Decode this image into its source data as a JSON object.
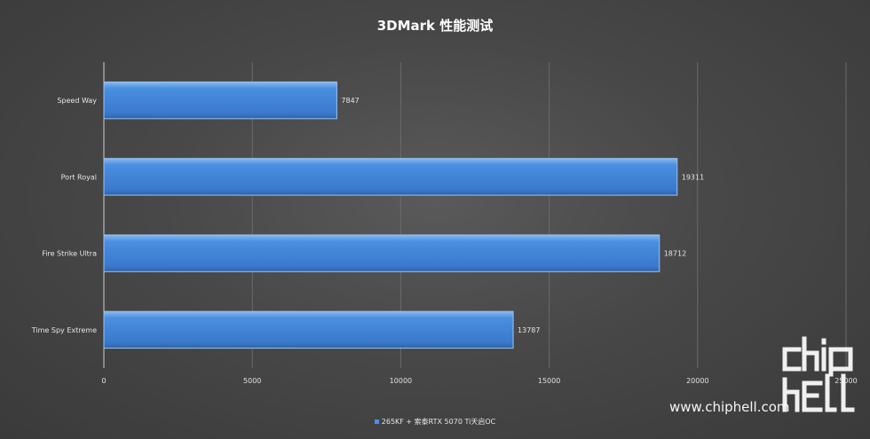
{
  "chart_data": {
    "type": "bar",
    "orientation": "horizontal",
    "title": "3DMark 性能测试",
    "categories": [
      "Speed Way",
      "Port Royal",
      "Fire Strike Ultra",
      "Time Spy Extreme"
    ],
    "series": [
      {
        "name": "265KF + 索泰RTX 5070 Ti天启OC",
        "values": [
          7847,
          19311,
          18712,
          13787
        ]
      }
    ],
    "xlim": [
      0,
      25000
    ],
    "xticks": [
      "0",
      "5000",
      "10000",
      "15000",
      "20000",
      "25000"
    ],
    "grid": true,
    "legend": "bottom",
    "colors": {
      "bar": "#3f82d8",
      "bar_edge": "#9cc3f2",
      "grid": "#6a6a6a",
      "axis": "#d0d0d0"
    }
  },
  "watermark": {
    "logo_text": "chip hell",
    "url": "www.chiphell.com"
  }
}
